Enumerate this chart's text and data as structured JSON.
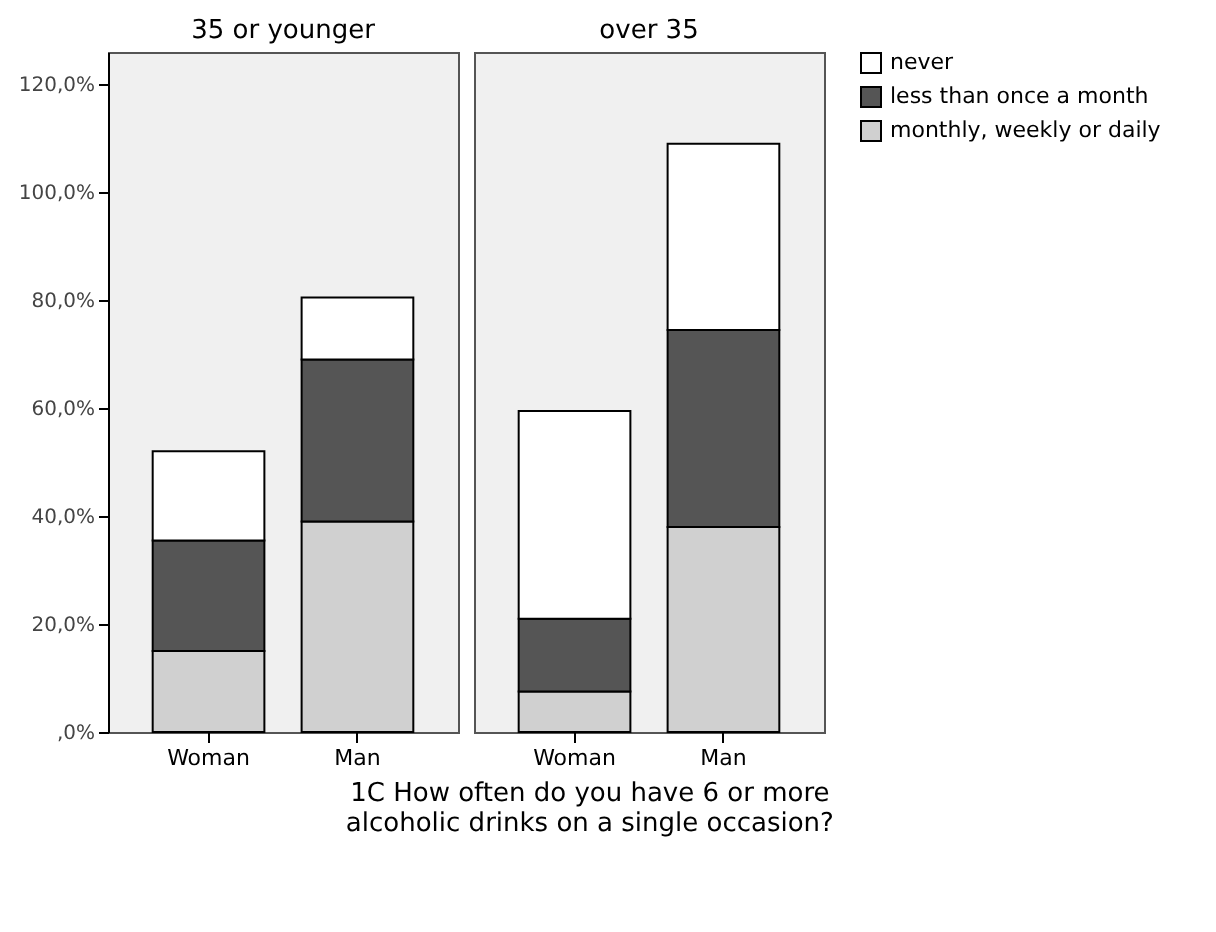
{
  "chart_data": [
    {
      "type": "bar",
      "title": "35 or younger",
      "xlabel": "1C How often do you have 6 or more alcoholic drinks on a single occasion?",
      "categories": [
        "Woman",
        "Man"
      ],
      "stacked": true,
      "legend": false,
      "grid": false,
      "series": [
        {
          "color": "#d0d0d0",
          "values": [
            15,
            39
          ]
        },
        {
          "color": "#555555",
          "values": [
            20.5,
            30
          ]
        },
        {
          "color": "#ffffff",
          "values": [
            16.5,
            11.5
          ]
        }
      ],
      "ylim": [
        0,
        126
      ],
      "yticks": [
        {
          "value": 0,
          "label": ",0%"
        },
        {
          "value": 20,
          "label": "20,0%"
        },
        {
          "value": 40,
          "label": "40,0%"
        },
        {
          "value": 60,
          "label": "60,0%"
        },
        {
          "value": 80,
          "label": "80,0%"
        },
        {
          "value": 100,
          "label": "100,0%"
        },
        {
          "value": 120,
          "label": "120,0%"
        }
      ]
    },
    {
      "type": "bar",
      "title": "over 35",
      "categories": [
        "Woman",
        "Man"
      ],
      "stacked": true,
      "legend": "right",
      "grid": false,
      "tick_labels": "x",
      "series": [
        {
          "name": "monthly, weekly or daily",
          "color": "#d0d0d0",
          "values": [
            7.5,
            38
          ]
        },
        {
          "name": "less than once a month",
          "color": "#555555",
          "values": [
            13.5,
            36.5
          ]
        },
        {
          "name": "never",
          "color": "#ffffff",
          "values": [
            38.5,
            34.5
          ]
        }
      ],
      "ylim": [
        0,
        126
      ]
    }
  ]
}
